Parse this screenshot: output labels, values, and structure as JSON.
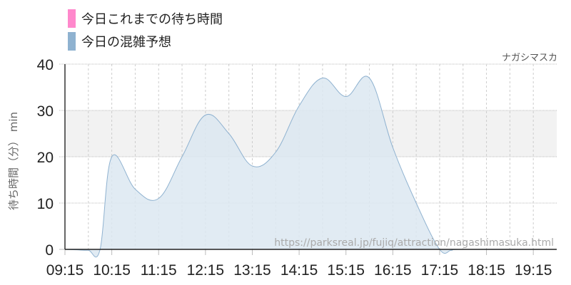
{
  "legend": [
    {
      "label": "今日これまでの待ち時間",
      "color": "#ff88cc"
    },
    {
      "label": "今日の混雑予想",
      "color": "#8fb2d0"
    }
  ],
  "attraction": "ナガシマスカ",
  "watermark": "https://parksreal.jp/fujiq/attraction/nagashimasuka.html",
  "chart_data": {
    "type": "area",
    "ylabel": "待ち時間（分） min",
    "ylim": [
      0,
      40
    ],
    "yticks": [
      "0",
      "10",
      "20",
      "30",
      "40"
    ],
    "xlim": [
      "09:15",
      "19:45"
    ],
    "xticks": [
      "09:15",
      "10:15",
      "11:15",
      "12:15",
      "13:15",
      "14:15",
      "15:15",
      "16:15",
      "17:15",
      "18:15",
      "19:15"
    ],
    "grid": true,
    "legend_position": "top-left",
    "series": [
      {
        "name": "今日の混雑予想",
        "color": "#8fb2d0",
        "fill": "#dce7f1",
        "points": [
          [
            "09:15",
            0
          ],
          [
            "09:30",
            -0.1
          ],
          [
            "09:45",
            -0.2
          ],
          [
            "10:00",
            0
          ],
          [
            "10:15",
            20
          ],
          [
            "10:45",
            13
          ],
          [
            "11:15",
            11
          ],
          [
            "11:45",
            20
          ],
          [
            "12:15",
            29
          ],
          [
            "12:45",
            25
          ],
          [
            "13:15",
            18
          ],
          [
            "13:45",
            21
          ],
          [
            "14:15",
            31
          ],
          [
            "14:45",
            37
          ],
          [
            "15:15",
            33
          ],
          [
            "15:45",
            37
          ],
          [
            "16:15",
            22
          ],
          [
            "16:45",
            10
          ],
          [
            "17:15",
            0
          ],
          [
            "17:30",
            -0.2
          ],
          [
            "17:45",
            0
          ],
          [
            "19:45",
            0
          ]
        ]
      }
    ]
  }
}
